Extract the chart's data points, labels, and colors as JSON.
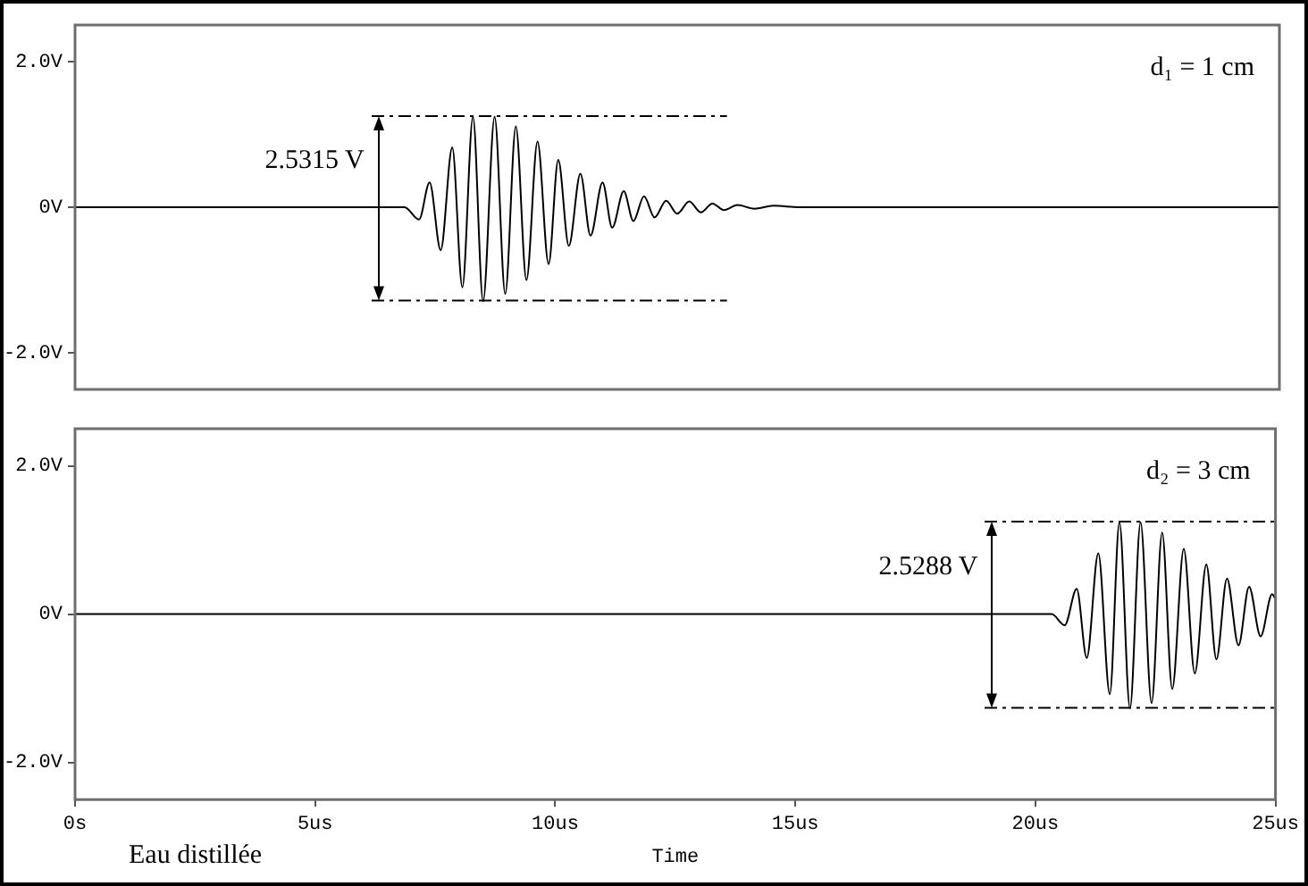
{
  "chart_data": [
    {
      "type": "line",
      "color": "#000000",
      "xlim": [
        0,
        25
      ],
      "ylim": [
        -2.5,
        2.5
      ],
      "yticks": [
        {
          "value": -2,
          "label": "-2.0V"
        },
        {
          "value": 0,
          "label": "0V"
        },
        {
          "value": 2,
          "label": "2.0V"
        }
      ],
      "tick_labels": "y",
      "x": [
        0,
        6.84,
        7.14,
        7.36,
        7.59,
        7.83,
        8.04,
        8.26,
        8.47,
        8.71,
        8.93,
        9.15,
        9.37,
        9.6,
        9.83,
        10.03,
        10.25,
        10.49,
        10.7,
        10.95,
        11.15,
        11.39,
        11.59,
        11.81,
        12.03,
        12.27,
        12.5,
        12.75,
        12.99,
        13.23,
        13.47,
        13.75,
        14.1,
        14.5,
        15.04,
        25
      ],
      "values": [
        0,
        0,
        -0.17,
        0.34,
        -0.59,
        0.82,
        -1.1,
        1.24,
        -1.29,
        1.24,
        -1.19,
        1.11,
        -1.0,
        0.9,
        -0.78,
        0.65,
        -0.53,
        0.46,
        -0.39,
        0.34,
        -0.28,
        0.22,
        -0.19,
        0.15,
        -0.14,
        0.09,
        -0.09,
        0.08,
        -0.07,
        0.05,
        -0.04,
        0.03,
        -0.02,
        0.02,
        0,
        0
      ],
      "annotations": [
        "d₁ = 1 cm",
        {
          "text": "2.5315 V",
          "x": 6.3,
          "y": 0
        }
      ]
    },
    {
      "type": "line",
      "color": "#000000",
      "xlim": [
        0,
        25
      ],
      "xticks": [
        {
          "value": 0,
          "label": "0s"
        },
        {
          "value": 5,
          "label": "5us"
        },
        {
          "value": 10,
          "label": "10us"
        },
        {
          "value": 15,
          "label": "15us"
        },
        {
          "value": 20,
          "label": "20us"
        },
        {
          "value": 25,
          "label": "25us"
        }
      ],
      "ylim": [
        -2.5,
        2.5
      ],
      "yticks": [
        {
          "value": -2,
          "label": "-2.0V"
        },
        {
          "value": 0,
          "label": "0V"
        },
        {
          "value": 2,
          "label": "2.0V"
        }
      ],
      "xlabel": "Time",
      "x": [
        0,
        20.34,
        20.61,
        20.86,
        21.07,
        21.31,
        21.55,
        21.75,
        21.97,
        22.19,
        22.42,
        22.64,
        22.85,
        23.09,
        23.32,
        23.56,
        23.77,
        23.99,
        24.23,
        24.45,
        24.69,
        24.93,
        25
      ],
      "values": [
        0,
        0,
        -0.15,
        0.34,
        -0.59,
        0.82,
        -1.08,
        1.24,
        -1.27,
        1.24,
        -1.2,
        1.1,
        -1.01,
        0.88,
        -0.8,
        0.67,
        -0.61,
        0.48,
        -0.42,
        0.37,
        -0.3,
        0.27,
        0.2
      ],
      "annotations": [
        "d₂ = 3 cm",
        {
          "text": "2.5288 V",
          "x": 19.1,
          "y": 0
        },
        "Eau distillée"
      ]
    }
  ]
}
